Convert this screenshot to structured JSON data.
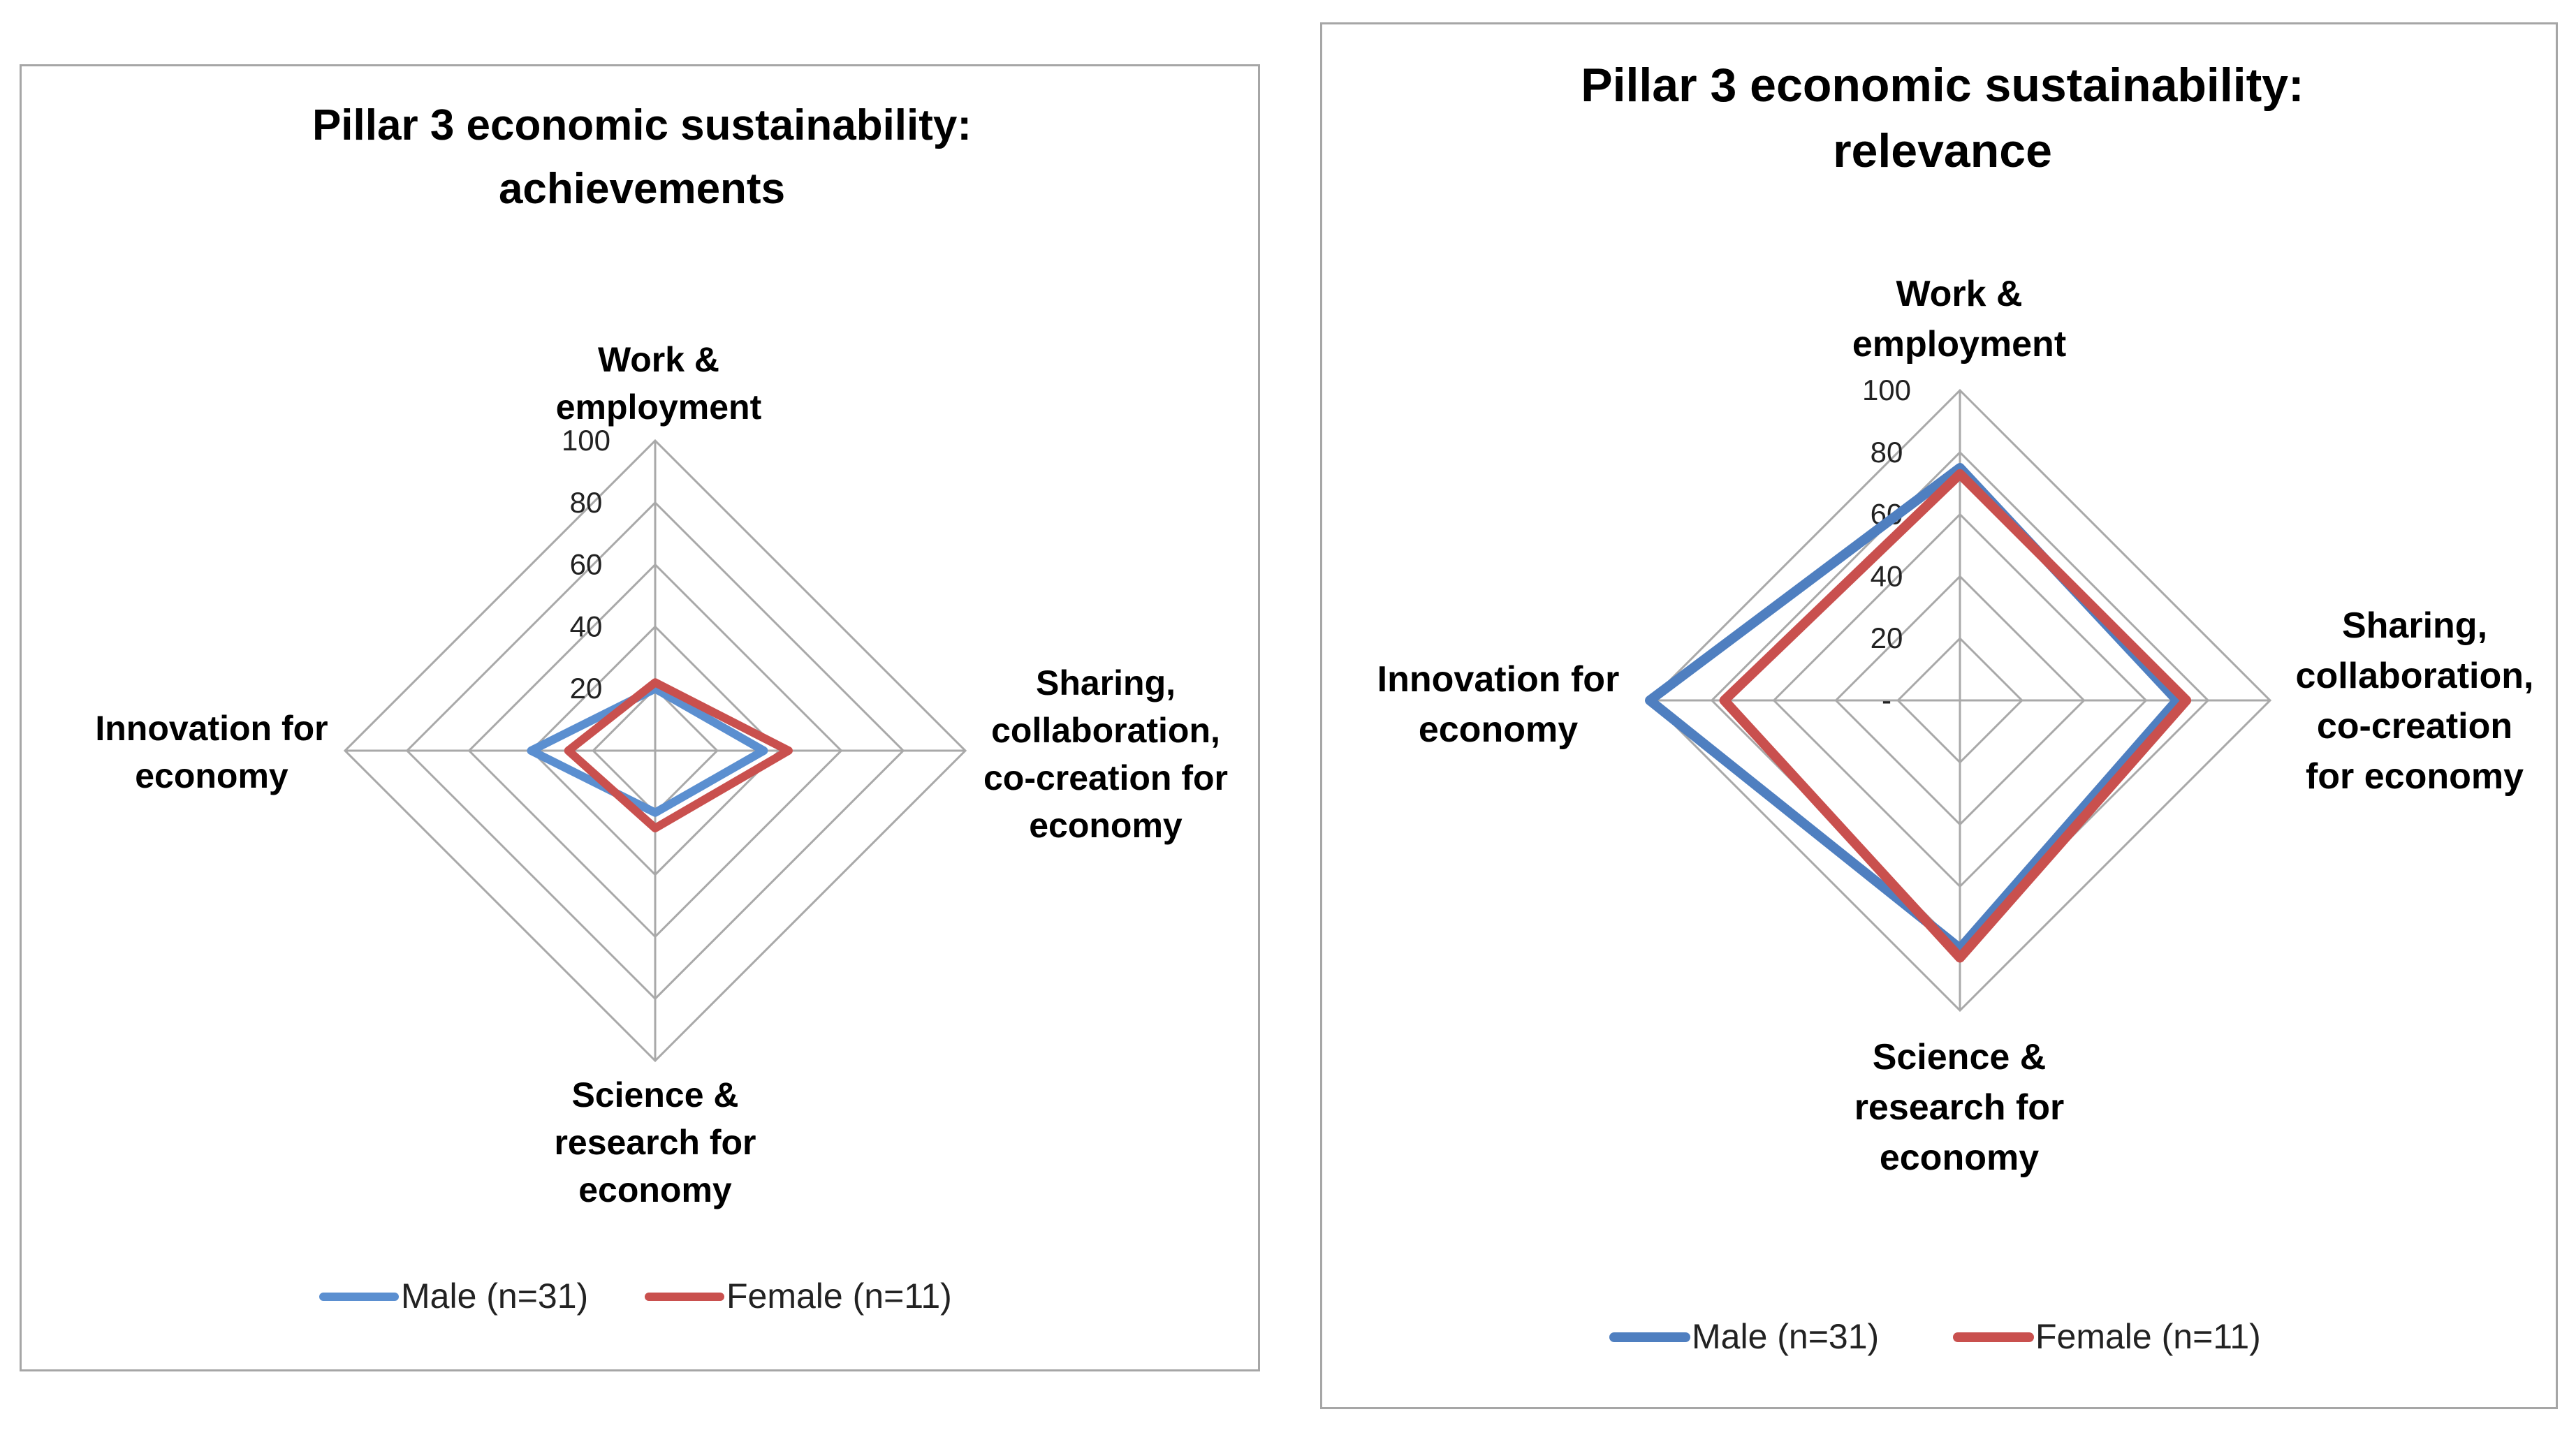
{
  "charts": [
    {
      "type": "radar",
      "title": [
        "Pillar 3 economic sustainability:",
        "achievements"
      ],
      "axes": [
        [
          "Work &",
          "employment"
        ],
        [
          "Sharing,",
          "collaboration,",
          "co-creation for",
          "economy"
        ],
        [
          "Science &",
          "research for",
          "economy"
        ],
        [
          "Innovation for",
          "economy"
        ]
      ],
      "ticks": [
        "20",
        "40",
        "60",
        "80",
        "100"
      ],
      "range": [
        0,
        100
      ],
      "series": [
        {
          "name": "Male (n=31)",
          "color": "#5b8fd0",
          "values": [
            20,
            35,
            20,
            40
          ]
        },
        {
          "name": "Female (n=11)",
          "color": "#c9504e",
          "values": [
            22,
            43,
            25,
            28
          ]
        }
      ],
      "grid": true,
      "legend": "bottom"
    },
    {
      "type": "radar",
      "title": [
        "Pillar 3 economic sustainability:",
        "relevance"
      ],
      "axes": [
        [
          "Work &",
          "employment"
        ],
        [
          "Sharing,",
          "collaboration,",
          "co-creation",
          "for economy"
        ],
        [
          "Science &",
          "research for",
          "economy"
        ],
        [
          "Innovation for",
          "economy"
        ]
      ],
      "ticks": [
        "-",
        "20",
        "40",
        "60",
        "80",
        "100"
      ],
      "range": [
        0,
        100
      ],
      "series": [
        {
          "name": "Male (n=31)",
          "color": "#4f7fc0",
          "values": [
            75,
            70,
            80,
            100
          ]
        },
        {
          "name": "Female (n=11)",
          "color": "#c9504e",
          "values": [
            73,
            73,
            83,
            76
          ]
        }
      ],
      "grid": true,
      "legend": "bottom"
    }
  ]
}
